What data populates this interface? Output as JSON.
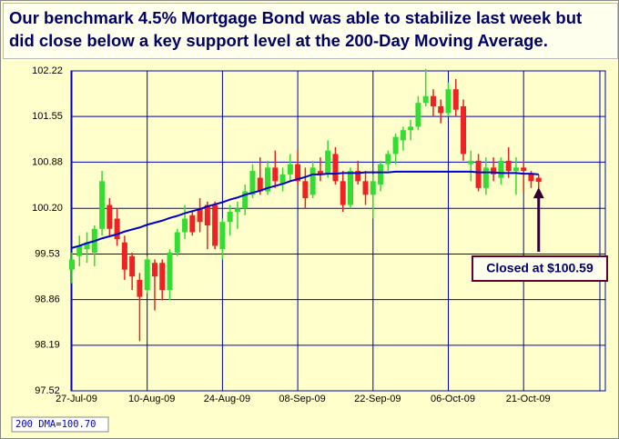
{
  "chart_data": {
    "type": "candlestick",
    "title": "Our benchmark 4.5% Mortgage Bond was able to stabilize last week but did close below a key support level at the 200-Day Moving Average.",
    "categories": [
      "27-Jul-09",
      null,
      null,
      null,
      null,
      null,
      null,
      null,
      null,
      null,
      "10-Aug-09",
      null,
      null,
      null,
      null,
      null,
      null,
      null,
      null,
      null,
      "24-Aug-09",
      null,
      null,
      null,
      null,
      null,
      null,
      null,
      null,
      null,
      "08-Sep-09",
      null,
      null,
      null,
      null,
      null,
      null,
      null,
      null,
      null,
      "22-Sep-09",
      null,
      null,
      null,
      null,
      null,
      null,
      null,
      null,
      null,
      "06-Oct-09",
      null,
      null,
      null,
      null,
      null,
      null,
      null,
      null,
      null,
      "21-Oct-09",
      null,
      null
    ],
    "open": [
      99.3,
      99.5,
      99.6,
      99.55,
      99.9,
      100.25,
      100.05,
      99.7,
      99.5,
      99.15,
      99.0,
      99.4,
      99.4,
      99.0,
      99.55,
      99.85,
      100.1,
      100.2,
      100.25,
      100.25,
      99.6,
      100.0,
      100.15,
      100.2,
      100.4,
      100.65,
      100.45,
      100.8,
      100.55,
      100.7,
      100.85,
      100.6,
      100.4,
      100.75,
      100.7,
      101.0,
      100.6,
      100.25,
      100.75,
      100.6,
      100.4,
      100.55,
      100.85,
      101.0,
      101.2,
      101.35,
      101.4,
      101.75,
      101.85,
      101.7,
      101.6,
      101.95,
      101.7,
      100.85,
      100.9,
      100.5,
      100.8,
      100.65,
      100.9,
      100.75,
      100.8,
      100.7,
      100.65
    ],
    "high": [
      99.55,
      99.8,
      99.85,
      99.95,
      100.75,
      100.35,
      100.2,
      99.8,
      99.55,
      99.25,
      99.5,
      99.45,
      99.45,
      99.6,
      99.9,
      100.25,
      100.15,
      100.35,
      100.3,
      100.3,
      100.05,
      100.25,
      100.3,
      100.55,
      100.85,
      100.95,
      100.9,
      101.05,
      100.8,
      101.0,
      101.05,
      100.8,
      100.9,
      100.95,
      101.2,
      101.1,
      100.75,
      100.8,
      100.9,
      100.75,
      100.7,
      100.9,
      101.05,
      101.3,
      101.4,
      101.5,
      101.85,
      102.25,
      101.95,
      101.8,
      102.05,
      102.1,
      101.8,
      101.05,
      101.0,
      100.95,
      100.95,
      100.95,
      101.1,
      100.95,
      100.9,
      100.75,
      100.7
    ],
    "low": [
      99.1,
      99.35,
      99.4,
      99.35,
      99.8,
      99.8,
      99.65,
      99.15,
      99.0,
      98.25,
      98.95,
      98.7,
      98.85,
      98.85,
      99.5,
      99.75,
      99.8,
      99.85,
      99.6,
      99.6,
      99.45,
      99.8,
      99.9,
      100.1,
      100.35,
      100.4,
      100.4,
      100.5,
      100.45,
      100.6,
      100.55,
      100.2,
      100.35,
      100.6,
      100.65,
      100.55,
      100.15,
      100.2,
      100.55,
      100.25,
      100.05,
      100.45,
      100.75,
      100.85,
      101.05,
      101.2,
      101.35,
      101.7,
      101.55,
      101.45,
      101.55,
      101.55,
      100.9,
      100.6,
      100.45,
      100.4,
      100.6,
      100.55,
      100.65,
      100.4,
      100.45,
      100.5,
      100.5
    ],
    "close": [
      99.45,
      99.65,
      99.7,
      99.9,
      100.6,
      99.9,
      99.75,
      99.3,
      99.2,
      98.9,
      99.45,
      99.2,
      99.0,
      99.55,
      99.85,
      100.05,
      99.85,
      100.0,
      99.95,
      99.65,
      100.0,
      100.15,
      100.2,
      100.45,
      100.75,
      100.45,
      100.8,
      100.6,
      100.7,
      100.85,
      100.6,
      100.35,
      100.8,
      100.7,
      101.05,
      100.6,
      100.25,
      100.75,
      100.6,
      100.4,
      100.6,
      100.85,
      101.0,
      101.25,
      101.35,
      101.4,
      101.75,
      101.85,
      101.7,
      101.6,
      101.95,
      101.65,
      101.0,
      100.9,
      100.5,
      100.8,
      100.7,
      100.9,
      100.75,
      100.8,
      100.75,
      100.6,
      100.59
    ],
    "up_color": "#33dd33",
    "down_color": "#ee2222",
    "series": [
      {
        "name": "200 DMA=100.70",
        "color": "#0000cc",
        "values": [
          99.62,
          99.65,
          99.69,
          99.72,
          99.76,
          99.79,
          99.82,
          99.86,
          99.89,
          99.92,
          99.96,
          99.99,
          100.02,
          100.06,
          100.09,
          100.13,
          100.16,
          100.19,
          100.23,
          100.26,
          100.29,
          100.33,
          100.36,
          100.4,
          100.43,
          100.46,
          100.5,
          100.53,
          100.56,
          100.6,
          100.63,
          100.66,
          100.7,
          100.7,
          100.71,
          100.71,
          100.72,
          100.72,
          100.72,
          100.73,
          100.73,
          100.73,
          100.73,
          100.74,
          100.74,
          100.74,
          100.74,
          100.74,
          100.74,
          100.74,
          100.74,
          100.74,
          100.74,
          100.74,
          100.73,
          100.73,
          100.73,
          100.72,
          100.72,
          100.72,
          100.71,
          100.71,
          100.7
        ]
      }
    ],
    "ylim": [
      97.52,
      102.22
    ],
    "yticks": [
      97.52,
      98.19,
      98.86,
      99.53,
      {
        "value": 100.2,
        "label": "100.20"
      },
      100.88,
      101.55,
      102.22
    ],
    "grid": true,
    "annotation": "Closed at $100.59"
  }
}
